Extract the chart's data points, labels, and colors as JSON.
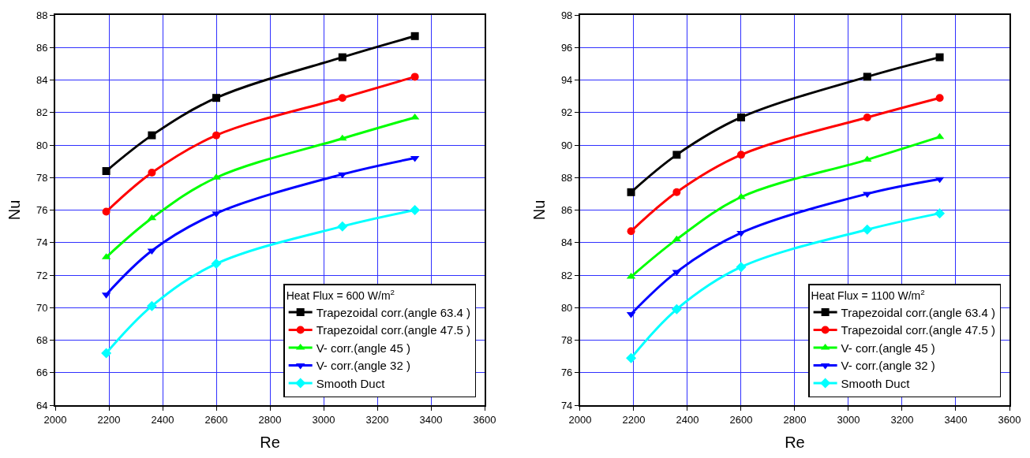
{
  "chart_data": [
    {
      "type": "line",
      "xlabel": "Re",
      "ylabel": "Nu",
      "legend_title": "Heat Flux = 600 W/m$^{2}$",
      "x": [
        2190,
        2360,
        2600,
        3070,
        3340
      ],
      "xlim": [
        2000,
        3600
      ],
      "xticks": [
        2000,
        2200,
        2400,
        2600,
        2800,
        3000,
        3200,
        3400,
        3600
      ],
      "ylim": [
        64,
        88
      ],
      "yticks": [
        64,
        66,
        68,
        70,
        72,
        74,
        76,
        78,
        80,
        82,
        84,
        86,
        88
      ],
      "grid": true,
      "legend": "bottom right",
      "line_style": "solid",
      "series": [
        {
          "name": "Trapezoidal corr.(angle 63.4 )",
          "color": "#000000",
          "marker": "square",
          "values": [
            78.4,
            80.6,
            82.9,
            85.4,
            86.7
          ]
        },
        {
          "name": "Trapezoidal corr.(angle 47.5 )",
          "color": "#ff0000",
          "marker": "circle",
          "values": [
            75.9,
            78.3,
            80.6,
            82.9,
            84.2
          ]
        },
        {
          "name": "V- corr.(angle 45 )",
          "color": "#00ff00",
          "marker": "triangle",
          "values": [
            73.1,
            75.5,
            78.0,
            80.4,
            81.7
          ]
        },
        {
          "name": "V- corr.(angle 32 )",
          "color": "#0000ff",
          "marker": "triangle-down",
          "values": [
            70.8,
            73.5,
            75.8,
            78.2,
            79.2
          ]
        },
        {
          "name": "Smooth Duct",
          "color": "#00ffff",
          "marker": "diamond",
          "values": [
            67.2,
            70.1,
            72.7,
            75.0,
            76.0
          ]
        }
      ]
    },
    {
      "type": "line",
      "xlabel": "Re",
      "ylabel": "Nu",
      "legend_title": "Heat Flux = 1100 W/m$^{2}$",
      "x": [
        2190,
        2360,
        2600,
        3070,
        3340
      ],
      "xlim": [
        2000,
        3600
      ],
      "xticks": [
        2000,
        2200,
        2400,
        2600,
        2800,
        3000,
        3200,
        3400,
        3600
      ],
      "ylim": [
        74,
        98
      ],
      "yticks": [
        74,
        76,
        78,
        80,
        82,
        84,
        86,
        88,
        90,
        92,
        94,
        96,
        98
      ],
      "grid": true,
      "legend": "bottom right",
      "line_style": "solid",
      "series": [
        {
          "name": "Trapezoidal corr.(angle 63.4 )",
          "color": "#000000",
          "marker": "square",
          "values": [
            87.1,
            89.4,
            91.7,
            94.2,
            95.4
          ]
        },
        {
          "name": "Trapezoidal corr.(angle 47.5 )",
          "color": "#ff0000",
          "marker": "circle",
          "values": [
            84.7,
            87.1,
            89.4,
            91.7,
            92.9
          ]
        },
        {
          "name": "V- corr.(angle 45 )",
          "color": "#00ff00",
          "marker": "triangle",
          "values": [
            81.9,
            84.2,
            86.8,
            89.1,
            90.5
          ]
        },
        {
          "name": "V- corr.(angle 32 )",
          "color": "#0000ff",
          "marker": "triangle-down",
          "values": [
            79.6,
            82.2,
            84.6,
            87.0,
            87.9
          ]
        },
        {
          "name": "Smooth Duct",
          "color": "#00ffff",
          "marker": "diamond",
          "values": [
            76.9,
            79.9,
            82.5,
            84.8,
            85.8
          ]
        }
      ]
    }
  ]
}
